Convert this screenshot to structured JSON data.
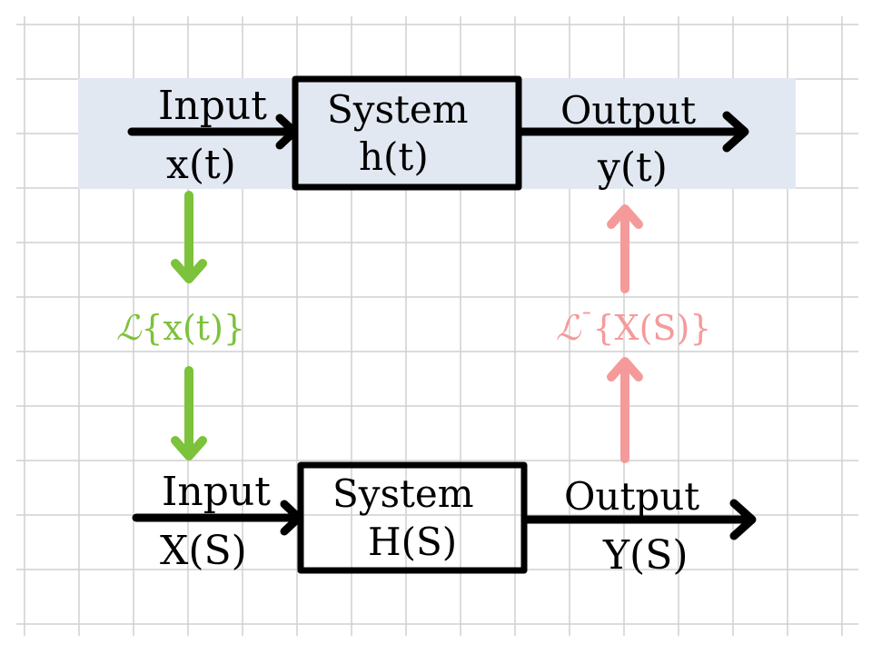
{
  "colors": {
    "grid_line": "#d0d0d0",
    "band": "#e2e8f1",
    "ink": "#000000",
    "forward": "#7cc23a",
    "inverse": "#f59a9a"
  },
  "time_domain": {
    "input_label": "Input",
    "input_signal": "x(t)",
    "system_label": "System",
    "system_response": "h(t)",
    "output_label": "Output",
    "output_signal": "y(t)"
  },
  "s_domain": {
    "input_label": "Input",
    "input_signal": "X(S)",
    "system_label": "System",
    "system_response": "H(S)",
    "output_label": "Output",
    "output_signal": "Y(S)"
  },
  "transforms": {
    "forward_symbol": "ℒ",
    "forward_arg": "{x(t)}",
    "inverse_symbol": "ℒ",
    "inverse_mark": "ˉ",
    "inverse_arg": "{X(S)}"
  }
}
